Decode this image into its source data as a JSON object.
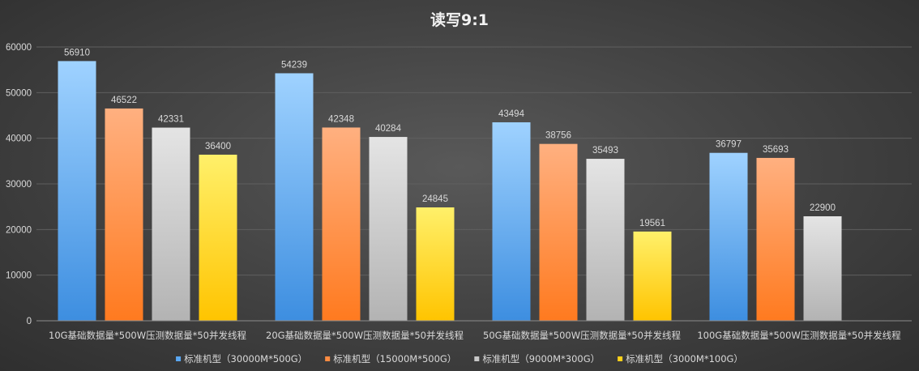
{
  "chart_data": {
    "type": "bar",
    "title": "读写9:1",
    "xlabel": "",
    "ylabel": "",
    "ylim": [
      0,
      60000
    ],
    "yticks": [
      0,
      10000,
      20000,
      30000,
      40000,
      50000,
      60000
    ],
    "grid": true,
    "legend_position": "bottom",
    "categories": [
      "10G基础数据量*500W压测数据量*50并发线程",
      "20G基础数据量*500W压测数据量*50并发线程",
      "50G基础数据量*500W压测数据量*50并发线程",
      "100G基础数据量*500W压测数据量*50并发线程"
    ],
    "series": [
      {
        "name": "标准机型（30000M*500G）",
        "color": "#5aa7f2",
        "color_light": "#9fd2ff",
        "color_dark": "#3d8ee0",
        "values": [
          56910,
          54239,
          43494,
          36797
        ]
      },
      {
        "name": "标准机型（15000M*500G）",
        "color": "#ff8c42",
        "color_light": "#ffb080",
        "color_dark": "#ff7a1f",
        "values": [
          46522,
          42348,
          38756,
          35693
        ]
      },
      {
        "name": "标准机型（9000M*300G）",
        "color": "#c8c8c8",
        "color_light": "#e4e4e4",
        "color_dark": "#b3b3b3",
        "values": [
          42331,
          40284,
          35493,
          22900
        ]
      },
      {
        "name": "标准机型（3000M*100G）",
        "color": "#ffd11a",
        "color_light": "#fff06a",
        "color_dark": "#ffc400",
        "values": [
          36400,
          24845,
          19561,
          null
        ]
      }
    ]
  }
}
